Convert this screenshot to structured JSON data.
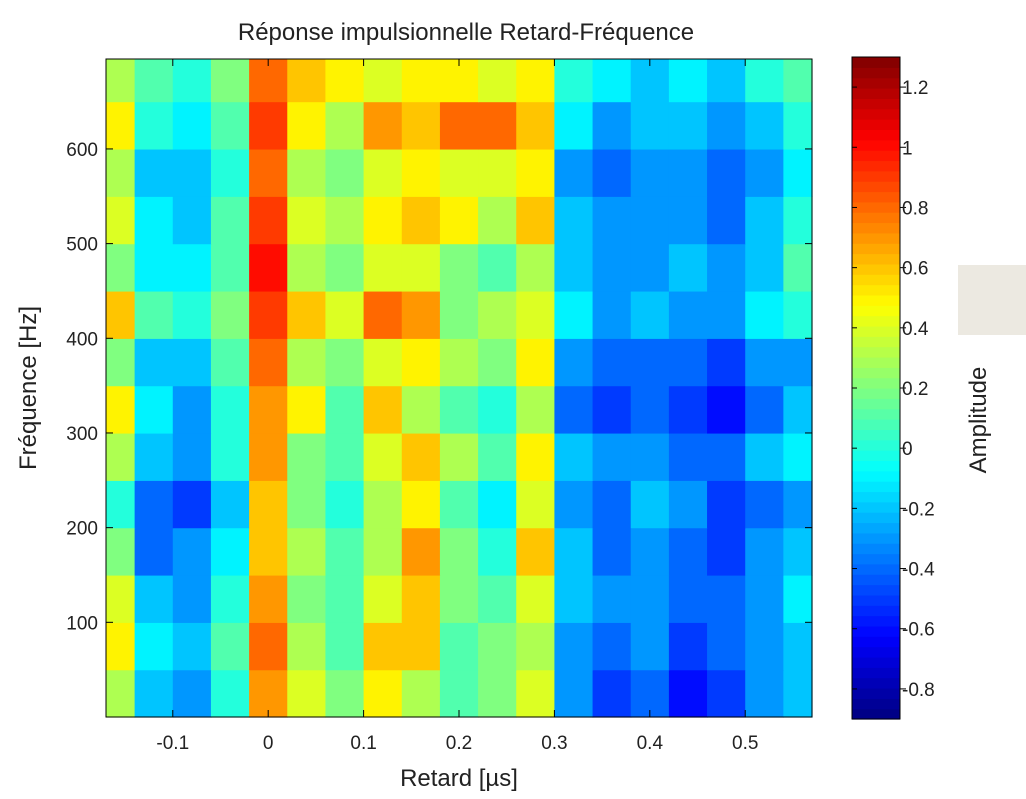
{
  "chart_data": {
    "type": "heatmap",
    "title": "Réponse impulsionnelle Retard-Fréquence",
    "xlabel": "Retard [µs]",
    "ylabel": "Fréquence [Hz]",
    "colorbar_label": "Amplitude",
    "xlim": [
      -0.17,
      0.57
    ],
    "ylim": [
      0,
      695
    ],
    "x_ticks": [
      -0.1,
      0,
      0.1,
      0.2,
      0.3,
      0.4,
      0.5
    ],
    "x_tick_labels": [
      "-0.1",
      "0",
      "0.1",
      "0.2",
      "0.3",
      "0.4",
      "0.5"
    ],
    "y_ticks": [
      100,
      200,
      300,
      400,
      500,
      600
    ],
    "y_tick_labels": [
      "100",
      "200",
      "300",
      "400",
      "500",
      "600"
    ],
    "clim": [
      -0.9,
      1.3
    ],
    "colorbar_ticks": [
      -0.8,
      -0.6,
      -0.4,
      -0.2,
      0,
      0.2,
      0.4,
      0.6,
      0.8,
      1,
      1.2
    ],
    "colorbar_tick_labels": [
      "-0.8",
      "-0.6",
      "-0.4",
      "-0.2",
      "0",
      "0.2",
      "0.4",
      "0.6",
      "0.8",
      "1",
      "1.2"
    ],
    "colormap": "jet",
    "grid": false,
    "x": [
      -0.16,
      -0.12,
      -0.08,
      -0.04,
      0.0,
      0.04,
      0.08,
      0.12,
      0.16,
      0.2,
      0.24,
      0.28,
      0.32,
      0.36,
      0.4,
      0.44,
      0.48,
      0.52,
      0.56
    ],
    "y": [
      25,
      75,
      125,
      175,
      225,
      275,
      325,
      375,
      425,
      475,
      525,
      575,
      625,
      675
    ],
    "z": [
      [
        0.3,
        -0.2,
        -0.3,
        0.0,
        0.7,
        0.4,
        0.2,
        0.5,
        0.3,
        0.1,
        0.2,
        0.4,
        -0.3,
        -0.5,
        -0.4,
        -0.6,
        -0.5,
        -0.3,
        -0.2
      ],
      [
        0.5,
        -0.1,
        -0.2,
        0.1,
        0.8,
        0.3,
        0.1,
        0.6,
        0.6,
        0.1,
        0.2,
        0.3,
        -0.3,
        -0.4,
        -0.3,
        -0.5,
        -0.4,
        -0.3,
        -0.2
      ],
      [
        0.4,
        -0.2,
        -0.3,
        0.0,
        0.7,
        0.2,
        0.1,
        0.4,
        0.6,
        0.2,
        0.1,
        0.4,
        -0.2,
        -0.3,
        -0.3,
        -0.4,
        -0.4,
        -0.3,
        -0.1
      ],
      [
        0.2,
        -0.4,
        -0.3,
        -0.1,
        0.6,
        0.3,
        0.1,
        0.3,
        0.7,
        0.2,
        0.0,
        0.6,
        -0.2,
        -0.4,
        -0.3,
        -0.4,
        -0.5,
        -0.3,
        -0.2
      ],
      [
        0.0,
        -0.4,
        -0.5,
        -0.2,
        0.6,
        0.2,
        0.0,
        0.3,
        0.5,
        0.1,
        -0.1,
        0.4,
        -0.3,
        -0.4,
        -0.2,
        -0.3,
        -0.5,
        -0.4,
        -0.3
      ],
      [
        0.3,
        -0.2,
        -0.3,
        0.0,
        0.7,
        0.2,
        0.1,
        0.4,
        0.6,
        0.3,
        0.1,
        0.5,
        -0.2,
        -0.3,
        -0.3,
        -0.4,
        -0.4,
        -0.2,
        -0.1
      ],
      [
        0.5,
        -0.1,
        -0.3,
        0.0,
        0.7,
        0.5,
        0.1,
        0.6,
        0.3,
        0.1,
        0.0,
        0.3,
        -0.4,
        -0.5,
        -0.4,
        -0.5,
        -0.6,
        -0.4,
        -0.2
      ],
      [
        0.2,
        -0.2,
        -0.2,
        0.1,
        0.8,
        0.3,
        0.2,
        0.4,
        0.5,
        0.3,
        0.2,
        0.5,
        -0.3,
        -0.4,
        -0.4,
        -0.4,
        -0.5,
        -0.3,
        -0.3
      ],
      [
        0.6,
        0.1,
        0.0,
        0.2,
        0.9,
        0.6,
        0.4,
        0.8,
        0.7,
        0.2,
        0.3,
        0.4,
        -0.1,
        -0.3,
        -0.2,
        -0.3,
        -0.3,
        -0.1,
        0.0
      ],
      [
        0.2,
        -0.1,
        -0.1,
        0.1,
        1.0,
        0.3,
        0.2,
        0.4,
        0.4,
        0.2,
        0.1,
        0.3,
        -0.2,
        -0.3,
        -0.3,
        -0.2,
        -0.3,
        -0.2,
        0.1
      ],
      [
        0.4,
        -0.1,
        -0.2,
        0.1,
        0.9,
        0.4,
        0.3,
        0.5,
        0.6,
        0.5,
        0.3,
        0.6,
        -0.2,
        -0.3,
        -0.3,
        -0.3,
        -0.4,
        -0.2,
        0.0
      ],
      [
        0.3,
        -0.2,
        -0.2,
        0.0,
        0.8,
        0.3,
        0.2,
        0.4,
        0.5,
        0.4,
        0.4,
        0.5,
        -0.3,
        -0.4,
        -0.3,
        -0.3,
        -0.4,
        -0.3,
        -0.1
      ],
      [
        0.5,
        0.0,
        -0.1,
        0.1,
        0.9,
        0.5,
        0.3,
        0.7,
        0.6,
        0.8,
        0.8,
        0.6,
        -0.1,
        -0.3,
        -0.2,
        -0.2,
        -0.3,
        -0.2,
        0.0
      ],
      [
        0.3,
        0.1,
        0.0,
        0.2,
        0.8,
        0.6,
        0.5,
        0.4,
        0.5,
        0.5,
        0.4,
        0.5,
        0.0,
        -0.1,
        -0.2,
        -0.1,
        -0.2,
        0.0,
        0.1
      ]
    ]
  }
}
